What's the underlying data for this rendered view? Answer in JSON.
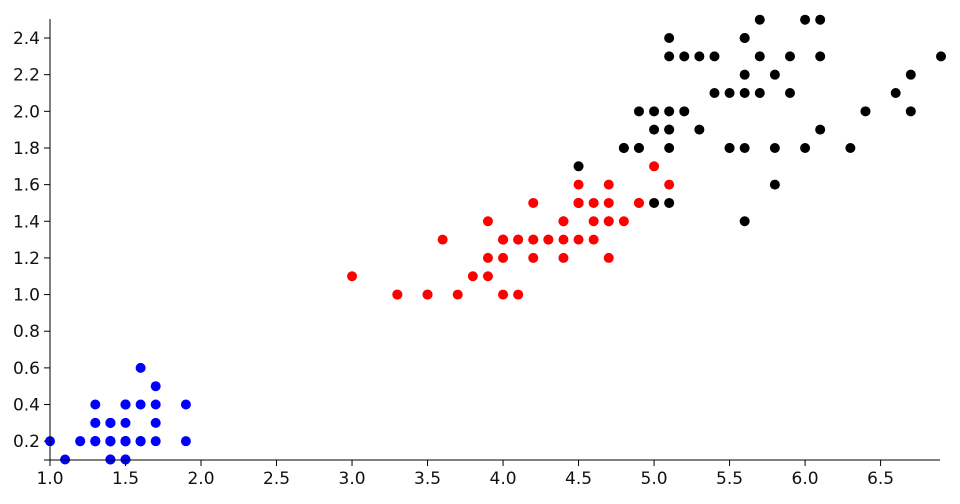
{
  "chart_data": {
    "type": "scatter",
    "title": "",
    "xlabel": "",
    "ylabel": "",
    "xlim": [
      1.0,
      6.9
    ],
    "ylim": [
      0.1,
      2.5
    ],
    "grid": false,
    "x_ticks": [
      "1.0",
      "1.5",
      "2.0",
      "2.5",
      "3.0",
      "3.5",
      "4.0",
      "4.5",
      "5.0",
      "5.5",
      "6.0",
      "6.5"
    ],
    "y_ticks": [
      "0.2",
      "0.4",
      "0.6",
      "0.8",
      "1.0",
      "1.2",
      "1.4",
      "1.6",
      "1.8",
      "2.0",
      "2.2",
      "2.4"
    ],
    "series": [
      {
        "color": "#0000ff",
        "points": [
          [
            1.4,
            0.2
          ],
          [
            1.4,
            0.2
          ],
          [
            1.3,
            0.2
          ],
          [
            1.5,
            0.2
          ],
          [
            1.4,
            0.2
          ],
          [
            1.7,
            0.4
          ],
          [
            1.4,
            0.3
          ],
          [
            1.5,
            0.2
          ],
          [
            1.4,
            0.2
          ],
          [
            1.5,
            0.1
          ],
          [
            1.5,
            0.2
          ],
          [
            1.6,
            0.2
          ],
          [
            1.4,
            0.1
          ],
          [
            1.1,
            0.1
          ],
          [
            1.2,
            0.2
          ],
          [
            1.5,
            0.4
          ],
          [
            1.3,
            0.4
          ],
          [
            1.4,
            0.3
          ],
          [
            1.7,
            0.3
          ],
          [
            1.5,
            0.3
          ],
          [
            1.7,
            0.2
          ],
          [
            1.5,
            0.4
          ],
          [
            1.0,
            0.2
          ],
          [
            1.7,
            0.5
          ],
          [
            1.9,
            0.2
          ],
          [
            1.6,
            0.2
          ],
          [
            1.6,
            0.4
          ],
          [
            1.5,
            0.2
          ],
          [
            1.4,
            0.2
          ],
          [
            1.6,
            0.2
          ],
          [
            1.6,
            0.2
          ],
          [
            1.5,
            0.4
          ],
          [
            1.5,
            0.1
          ],
          [
            1.4,
            0.2
          ],
          [
            1.5,
            0.2
          ],
          [
            1.2,
            0.2
          ],
          [
            1.3,
            0.2
          ],
          [
            1.4,
            0.1
          ],
          [
            1.3,
            0.2
          ],
          [
            1.5,
            0.2
          ],
          [
            1.3,
            0.3
          ],
          [
            1.3,
            0.3
          ],
          [
            1.3,
            0.2
          ],
          [
            1.6,
            0.6
          ],
          [
            1.9,
            0.4
          ],
          [
            1.4,
            0.3
          ],
          [
            1.6,
            0.2
          ],
          [
            1.4,
            0.2
          ],
          [
            1.5,
            0.2
          ],
          [
            1.4,
            0.2
          ]
        ]
      },
      {
        "color": "#ff0000",
        "points": [
          [
            4.7,
            1.4
          ],
          [
            4.5,
            1.5
          ],
          [
            4.9,
            1.5
          ],
          [
            4.0,
            1.3
          ],
          [
            4.6,
            1.5
          ],
          [
            4.5,
            1.3
          ],
          [
            4.7,
            1.6
          ],
          [
            3.3,
            1.0
          ],
          [
            4.6,
            1.3
          ],
          [
            3.9,
            1.4
          ],
          [
            3.5,
            1.0
          ],
          [
            4.2,
            1.5
          ],
          [
            4.0,
            1.0
          ],
          [
            4.7,
            1.4
          ],
          [
            3.6,
            1.3
          ],
          [
            4.4,
            1.4
          ],
          [
            4.5,
            1.5
          ],
          [
            4.1,
            1.0
          ],
          [
            4.5,
            1.5
          ],
          [
            3.9,
            1.1
          ],
          [
            4.8,
            1.8
          ],
          [
            4.0,
            1.3
          ],
          [
            4.9,
            1.5
          ],
          [
            4.7,
            1.2
          ],
          [
            4.3,
            1.3
          ],
          [
            4.4,
            1.4
          ],
          [
            4.8,
            1.4
          ],
          [
            5.0,
            1.7
          ],
          [
            4.5,
            1.5
          ],
          [
            3.5,
            1.0
          ],
          [
            3.8,
            1.1
          ],
          [
            3.7,
            1.0
          ],
          [
            3.9,
            1.2
          ],
          [
            5.1,
            1.6
          ],
          [
            4.5,
            1.5
          ],
          [
            4.5,
            1.6
          ],
          [
            4.7,
            1.5
          ],
          [
            4.4,
            1.3
          ],
          [
            4.1,
            1.3
          ],
          [
            4.0,
            1.3
          ],
          [
            4.4,
            1.2
          ],
          [
            4.6,
            1.4
          ],
          [
            4.0,
            1.2
          ],
          [
            3.3,
            1.0
          ],
          [
            4.2,
            1.3
          ],
          [
            4.2,
            1.2
          ],
          [
            4.2,
            1.3
          ],
          [
            4.3,
            1.3
          ],
          [
            3.0,
            1.1
          ],
          [
            4.1,
            1.3
          ]
        ]
      },
      {
        "color": "#000000",
        "points": [
          [
            6.0,
            2.5
          ],
          [
            5.1,
            1.9
          ],
          [
            5.9,
            2.1
          ],
          [
            5.6,
            1.8
          ],
          [
            5.8,
            2.2
          ],
          [
            6.6,
            2.1
          ],
          [
            4.5,
            1.7
          ],
          [
            6.3,
            1.8
          ],
          [
            5.8,
            1.8
          ],
          [
            6.1,
            2.5
          ],
          [
            5.1,
            2.0
          ],
          [
            5.3,
            1.9
          ],
          [
            5.5,
            2.1
          ],
          [
            5.0,
            2.0
          ],
          [
            5.1,
            2.4
          ],
          [
            5.3,
            2.3
          ],
          [
            5.5,
            1.8
          ],
          [
            6.7,
            2.2
          ],
          [
            6.9,
            2.3
          ],
          [
            5.0,
            1.5
          ],
          [
            5.7,
            2.3
          ],
          [
            4.9,
            2.0
          ],
          [
            6.7,
            2.0
          ],
          [
            4.9,
            1.8
          ],
          [
            5.7,
            2.1
          ],
          [
            6.0,
            1.8
          ],
          [
            4.8,
            1.8
          ],
          [
            4.9,
            1.8
          ],
          [
            5.6,
            2.1
          ],
          [
            5.8,
            1.6
          ],
          [
            6.1,
            1.9
          ],
          [
            6.4,
            2.0
          ],
          [
            5.6,
            2.2
          ],
          [
            5.1,
            1.5
          ],
          [
            5.6,
            1.4
          ],
          [
            6.1,
            2.3
          ],
          [
            5.6,
            2.4
          ],
          [
            5.5,
            1.8
          ],
          [
            4.8,
            1.8
          ],
          [
            5.4,
            2.1
          ],
          [
            5.6,
            2.4
          ],
          [
            5.1,
            2.3
          ],
          [
            5.1,
            1.9
          ],
          [
            5.9,
            2.3
          ],
          [
            5.7,
            2.5
          ],
          [
            5.2,
            2.3
          ],
          [
            5.0,
            1.9
          ],
          [
            5.2,
            2.0
          ],
          [
            5.4,
            2.3
          ],
          [
            5.1,
            1.8
          ]
        ]
      }
    ]
  }
}
